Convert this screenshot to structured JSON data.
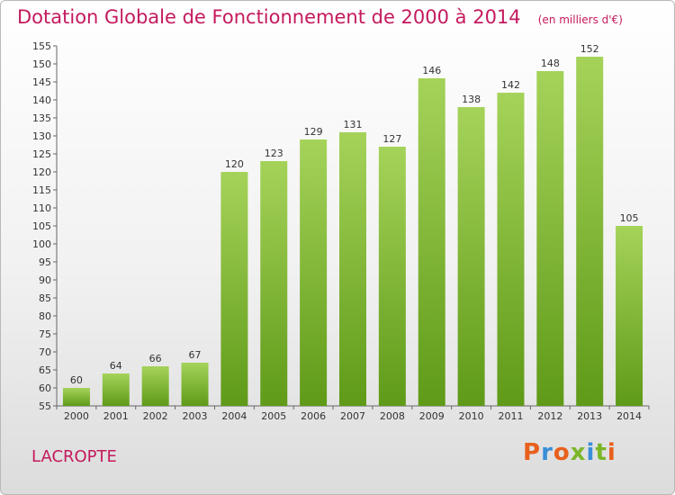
{
  "header": {
    "title": "Dotation Globale de Fonctionnement de 2000 à 2014",
    "unit": "(en milliers d'€)"
  },
  "footer": {
    "place": "LACROPTE",
    "brand": "Proxiti"
  },
  "colors": {
    "bar_light": "#a5d35a",
    "bar_dark": "#5f9a18",
    "title": "#c41a5e",
    "brand_letters": [
      "#e8601c",
      "#3a8fd8",
      "#e8601c",
      "#7bb628",
      "#3a8fd8",
      "#7bb628",
      "#e8601c"
    ]
  },
  "chart_data": {
    "type": "bar",
    "title": "Dotation Globale de Fonctionnement de 2000 à 2014",
    "subtitle": "(en milliers d'€)",
    "xlabel": "",
    "ylabel": "",
    "categories": [
      "2000",
      "2001",
      "2002",
      "2003",
      "2004",
      "2005",
      "2006",
      "2007",
      "2008",
      "2009",
      "2010",
      "2011",
      "2012",
      "2013",
      "2014"
    ],
    "values": [
      60,
      64,
      66,
      67,
      120,
      123,
      129,
      131,
      127,
      146,
      138,
      142,
      148,
      152,
      105
    ],
    "ylim": [
      55,
      155
    ],
    "ytick_step": 5,
    "grid": false,
    "legend": "none"
  }
}
